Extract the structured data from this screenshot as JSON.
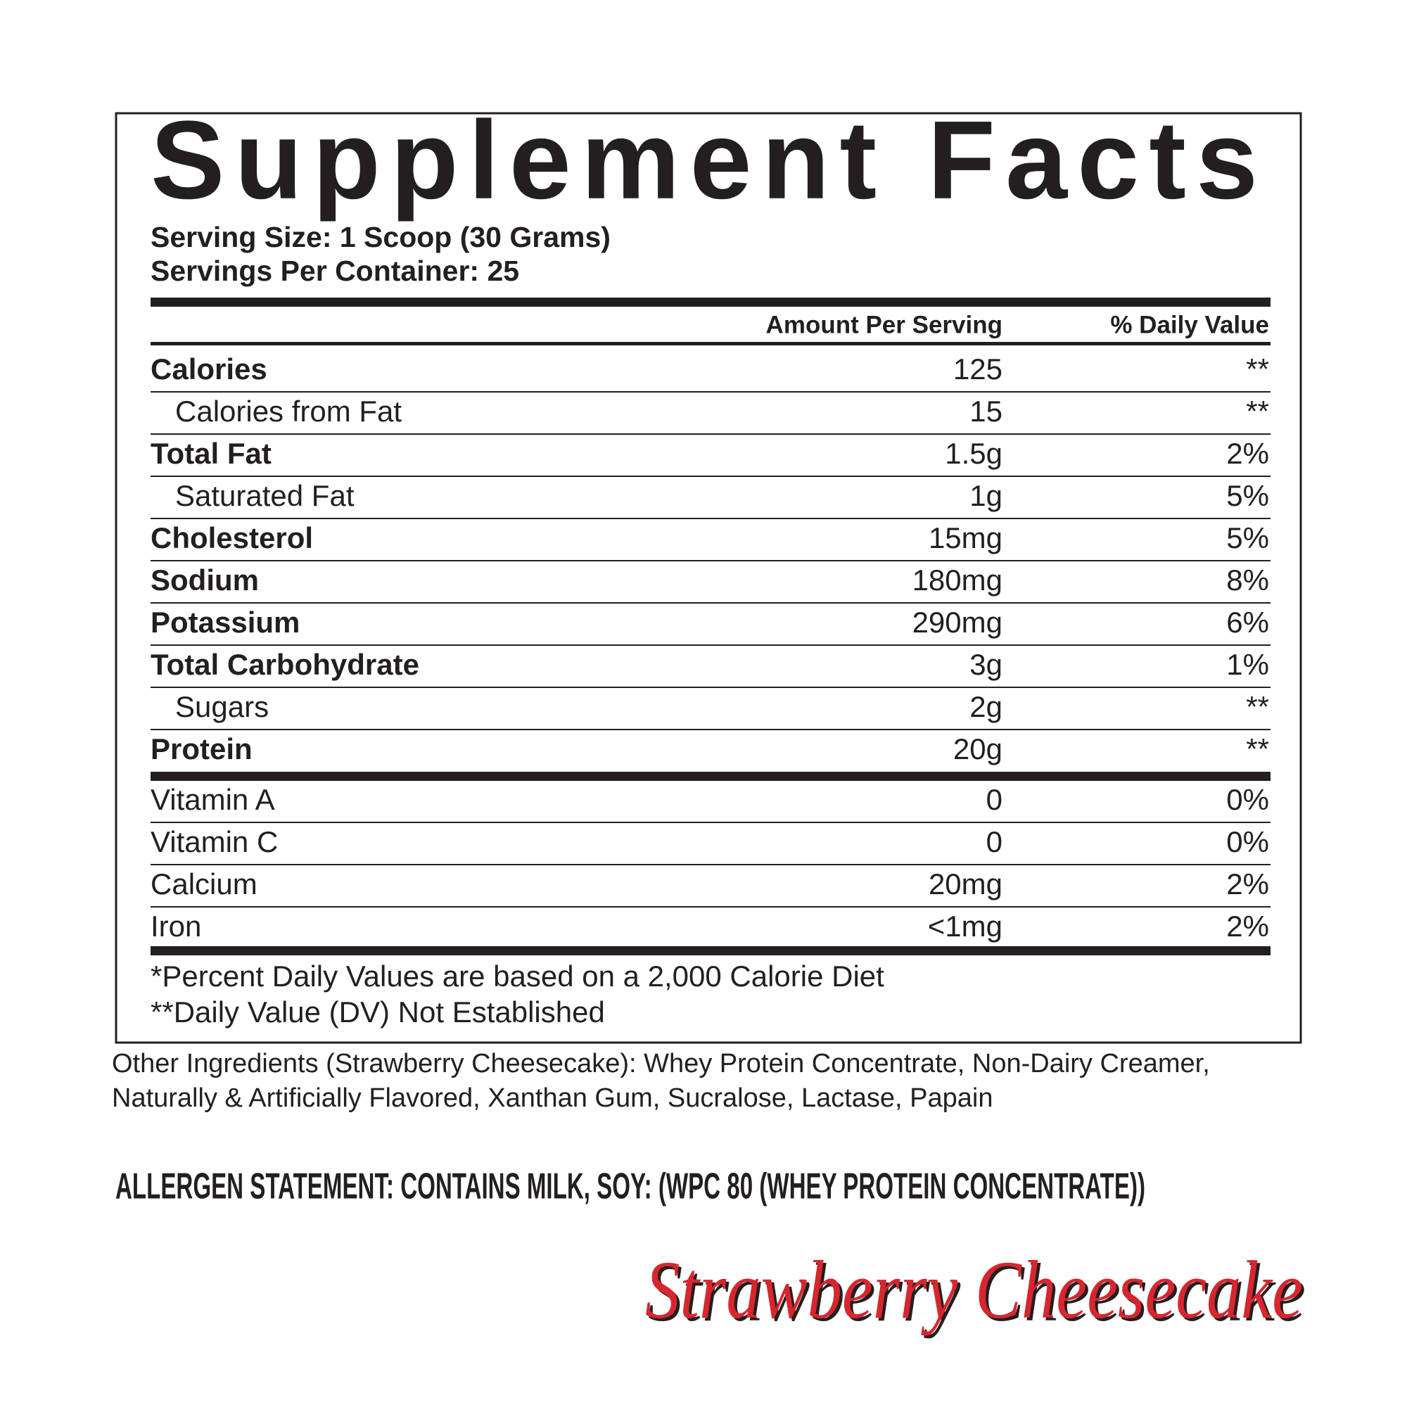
{
  "title": "Supplement Facts",
  "serving_size": "Serving Size: 1 Scoop (30 Grams)",
  "servings_per_container": "Servings Per Container: 25",
  "header": {
    "amount": "Amount Per Serving",
    "daily_value": "% Daily Value"
  },
  "nutrients": [
    [
      "Calories",
      "125",
      "**"
    ],
    [
      "Calories from Fat",
      "15",
      "**"
    ],
    [
      "Total Fat",
      "1.5g",
      "2%"
    ],
    [
      "Saturated Fat",
      "1g",
      "5%"
    ],
    [
      "Cholesterol",
      "15mg",
      "5%"
    ],
    [
      "Sodium",
      "180mg",
      "8%"
    ],
    [
      "Potassium",
      "290mg",
      "6%"
    ],
    [
      "Total Carbohydrate",
      "3g",
      "1%"
    ],
    [
      "Sugars",
      "2g",
      "**"
    ],
    [
      "Protein",
      "20g",
      "**"
    ]
  ],
  "vitamins": [
    [
      "Vitamin A",
      "0",
      "0%"
    ],
    [
      "Vitamin C",
      "0",
      "0%"
    ],
    [
      "Calcium",
      "20mg",
      "2%"
    ],
    [
      "Iron",
      "<1mg",
      "2%"
    ]
  ],
  "footnotes": [
    "*Percent Daily Values are based on a 2,000 Calorie Diet",
    "**Daily Value (DV) Not Established"
  ],
  "other_ingredients": [
    "Other Ingredients (Strawberry Cheesecake): Whey Protein Concentrate, Non-Dairy Creamer,",
    "Naturally & Artificially Flavored, Xanthan Gum, Sucralose, Lactase, Papain"
  ],
  "allergen": "ALLERGEN STATEMENT: CONTAINS MILK, SOY: (WPC 80 (WHEY PROTEIN CONCENTRATE))",
  "flavor": "Strawberry Cheesecake"
}
